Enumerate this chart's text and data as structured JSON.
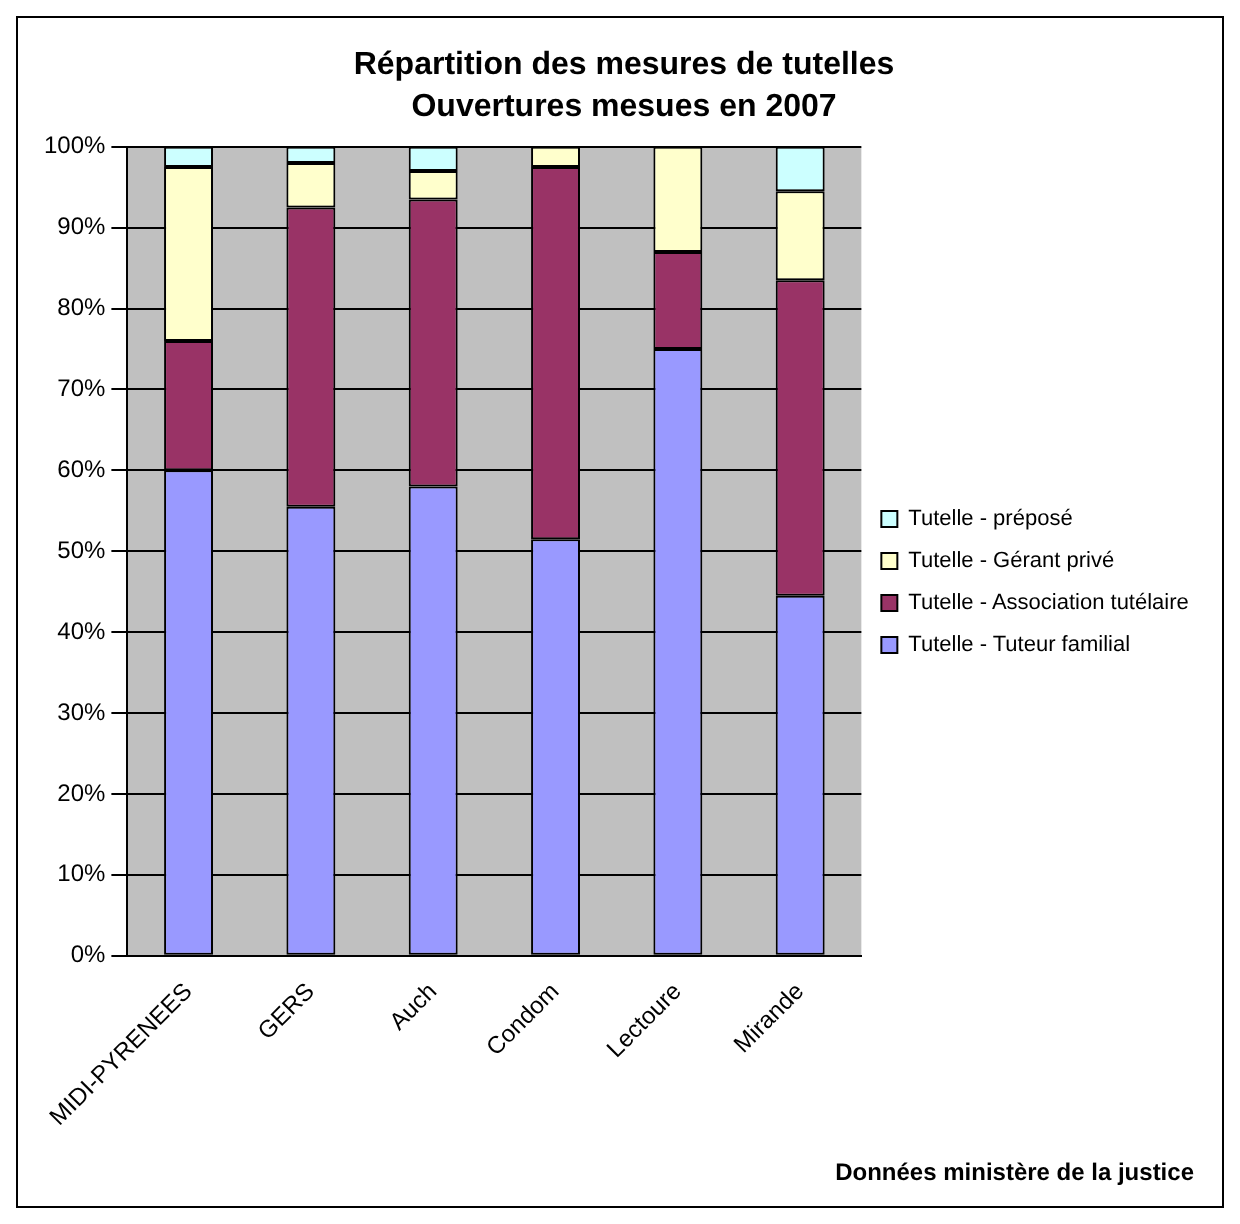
{
  "chart_data": {
    "type": "bar",
    "title": "Répartition des mesures de tutelles",
    "subtitle": "Ouvertures mesues en 2007",
    "categories": [
      "MIDI-PYRENEES",
      "GERS",
      "Auch",
      "Condom",
      "Lectoure",
      "Mirande"
    ],
    "stacked": true,
    "series": [
      {
        "name": "Tutelle - Tuteur familial",
        "color": "#9999ff",
        "values": [
          60,
          55.5,
          58,
          51.5,
          75,
          44.5
        ]
      },
      {
        "name": "Tutelle - Association tutélaire",
        "color": "#993366",
        "values": [
          16,
          37,
          35.5,
          46,
          12,
          39
        ]
      },
      {
        "name": "Tutelle - Gérant privé",
        "color": "#ffffcc",
        "values": [
          21.5,
          5.5,
          3.5,
          2.5,
          13,
          11
        ]
      },
      {
        "name": "Tutelle - préposé",
        "color": "#ccffff",
        "values": [
          2.5,
          2,
          3,
          0,
          0,
          5.5
        ]
      }
    ],
    "ylim": [
      0,
      100
    ],
    "yticks": [
      {
        "value": 0,
        "label": "0%"
      },
      {
        "value": 10,
        "label": "10%"
      },
      {
        "value": 20,
        "label": "20%"
      },
      {
        "value": 30,
        "label": "30%"
      },
      {
        "value": 40,
        "label": "40%"
      },
      {
        "value": 50,
        "label": "50%"
      },
      {
        "value": 60,
        "label": "60%"
      },
      {
        "value": 70,
        "label": "70%"
      },
      {
        "value": 80,
        "label": "80%"
      },
      {
        "value": 90,
        "label": "90%"
      },
      {
        "value": 100,
        "label": "100%"
      }
    ],
    "grid": "y",
    "legend": "right",
    "annotations": [
      "Données ministère de la justice"
    ]
  }
}
